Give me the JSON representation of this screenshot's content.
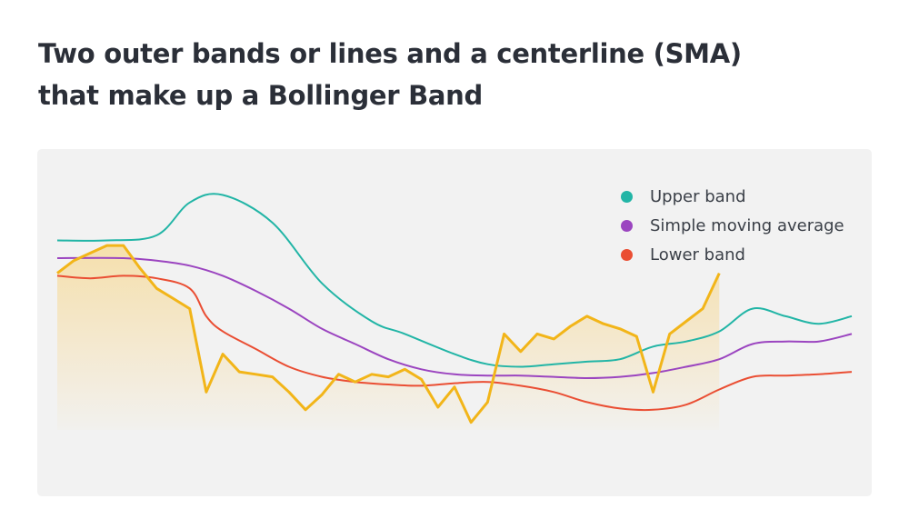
{
  "title": {
    "line1": "Two outer bands or lines and a centerline (SMA)",
    "line2": "that make up a Bollinger Band"
  },
  "colors": {
    "upper": "#22b5a6",
    "sma": "#9b45c0",
    "lower": "#ea4e33",
    "price": "#f2b519",
    "price_fill": "#f6dca0",
    "panel": "#f2f2f2"
  },
  "legend": [
    {
      "label": "Upper band",
      "color": "#22b5a6"
    },
    {
      "label": "Simple moving average",
      "color": "#9b45c0"
    },
    {
      "label": "Lower band",
      "color": "#ea4e33"
    }
  ],
  "chart_data": {
    "type": "line",
    "title": "Two outer bands or lines and a centerline (SMA) that make up a Bollinger Band",
    "xlabel": "",
    "ylabel": "",
    "axes_visible": false,
    "grid": false,
    "legend_position": "top-right",
    "xlim": [
      0,
      48
    ],
    "ylim": [
      0,
      100
    ],
    "series": [
      {
        "name": "Upper band",
        "color": "#22b5a6",
        "points": [
          [
            0,
            75
          ],
          [
            3,
            75
          ],
          [
            6,
            77
          ],
          [
            8,
            90
          ],
          [
            10,
            93
          ],
          [
            13,
            82
          ],
          [
            16,
            58
          ],
          [
            19,
            43
          ],
          [
            21,
            38
          ],
          [
            24,
            30
          ],
          [
            26,
            26
          ],
          [
            28,
            25
          ],
          [
            30,
            26
          ],
          [
            32,
            27
          ],
          [
            34,
            28
          ],
          [
            36,
            33
          ],
          [
            38,
            35
          ],
          [
            40,
            39
          ],
          [
            42,
            48
          ],
          [
            44,
            45
          ],
          [
            46,
            42
          ],
          [
            48,
            45
          ]
        ]
      },
      {
        "name": "Simple moving average",
        "color": "#9b45c0",
        "points": [
          [
            0,
            68
          ],
          [
            4,
            68
          ],
          [
            6,
            67
          ],
          [
            8,
            65
          ],
          [
            10,
            61
          ],
          [
            12,
            55
          ],
          [
            14,
            48
          ],
          [
            16,
            40
          ],
          [
            18,
            34
          ],
          [
            20,
            28
          ],
          [
            22,
            24
          ],
          [
            24,
            22
          ],
          [
            26,
            21.5
          ],
          [
            28,
            21.5
          ],
          [
            30,
            21
          ],
          [
            32,
            20.5
          ],
          [
            34,
            21
          ],
          [
            36,
            22.5
          ],
          [
            38,
            25
          ],
          [
            40,
            28
          ],
          [
            42,
            34
          ],
          [
            44,
            35
          ],
          [
            46,
            35
          ],
          [
            48,
            38
          ]
        ]
      },
      {
        "name": "Lower band",
        "color": "#ea4e33",
        "points": [
          [
            0,
            61
          ],
          [
            2,
            60
          ],
          [
            4,
            61
          ],
          [
            6,
            60
          ],
          [
            8,
            56
          ],
          [
            9,
            45
          ],
          [
            10,
            39
          ],
          [
            12,
            32
          ],
          [
            14,
            25
          ],
          [
            16,
            21
          ],
          [
            18,
            19
          ],
          [
            20,
            18
          ],
          [
            22,
            17.5
          ],
          [
            24,
            18.5
          ],
          [
            26,
            19
          ],
          [
            28,
            17.5
          ],
          [
            30,
            15
          ],
          [
            32,
            11
          ],
          [
            34,
            8.5
          ],
          [
            36,
            8
          ],
          [
            38,
            10
          ],
          [
            40,
            16
          ],
          [
            42,
            21
          ],
          [
            44,
            21.5
          ],
          [
            46,
            22
          ],
          [
            48,
            23
          ]
        ]
      },
      {
        "name": "",
        "color": "#f2b519",
        "filled": true,
        "points": [
          [
            0,
            62
          ],
          [
            1,
            67
          ],
          [
            2,
            70
          ],
          [
            3,
            73
          ],
          [
            4,
            73
          ],
          [
            5,
            64
          ],
          [
            6,
            56
          ],
          [
            7,
            52
          ],
          [
            8,
            48
          ],
          [
            9,
            15
          ],
          [
            10,
            30
          ],
          [
            11,
            23
          ],
          [
            12,
            22
          ],
          [
            13,
            21
          ],
          [
            14,
            15
          ],
          [
            15,
            8
          ],
          [
            16,
            14
          ],
          [
            17,
            22
          ],
          [
            18,
            19
          ],
          [
            19,
            22
          ],
          [
            20,
            21
          ],
          [
            21,
            24
          ],
          [
            22,
            20
          ],
          [
            23,
            9
          ],
          [
            24,
            17
          ],
          [
            25,
            3
          ],
          [
            26,
            11
          ],
          [
            27,
            38
          ],
          [
            28,
            31
          ],
          [
            29,
            38
          ],
          [
            30,
            36
          ],
          [
            31,
            41
          ],
          [
            32,
            45
          ],
          [
            33,
            42
          ],
          [
            34,
            40
          ],
          [
            35,
            37
          ],
          [
            36,
            15
          ],
          [
            37,
            38
          ],
          [
            38,
            43
          ],
          [
            39,
            48
          ],
          [
            40,
            62
          ]
        ]
      }
    ]
  }
}
